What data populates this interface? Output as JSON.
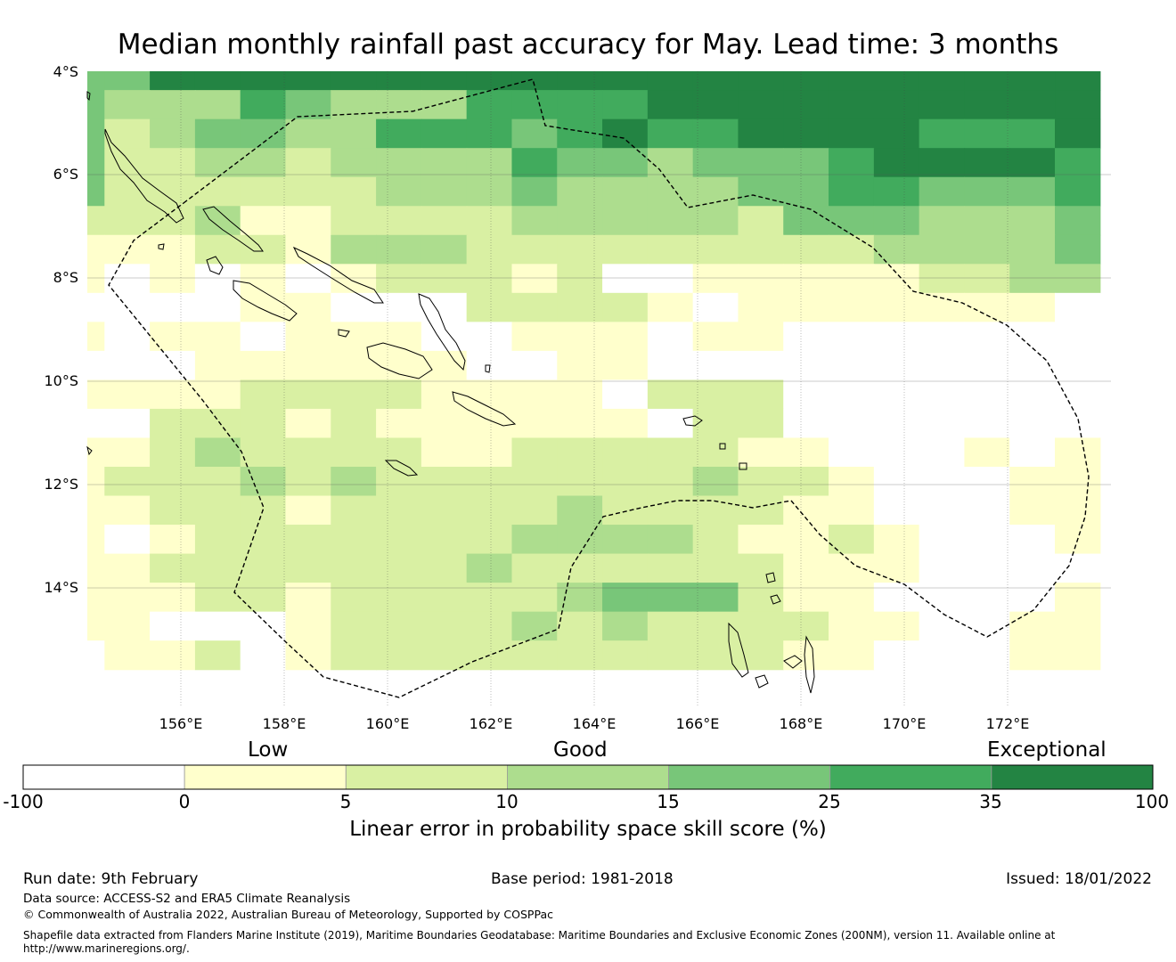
{
  "title": "Median monthly rainfall past accuracy for May. Lead time: 3 months",
  "map": {
    "lat_labels": [
      "4°S",
      "6°S",
      "8°S",
      "10°S",
      "12°S",
      "14°S"
    ],
    "lon_labels": [
      "156°E",
      "158°E",
      "160°E",
      "162°E",
      "164°E",
      "166°E",
      "168°E",
      "170°E",
      "172°E"
    ],
    "extent": {
      "lon_min": 154.2,
      "lon_max": 174.0,
      "lat_top": -4.0,
      "lat_bottom": -16.3
    },
    "class_colors": [
      "#ffffff",
      "#ffffcc",
      "#d9f0a3",
      "#addd8e",
      "#78c679",
      "#41ab5d",
      "#238443"
    ],
    "grid_rows": [
      "44666666666666666666666",
      "43335433355556666666666",
      "42344335554565566665556",
      "42233233335443444566665",
      "42222223334333344554445",
      "22231122223333324443334",
      "11122133322222222233334",
      "10101012221200111112233",
      "00001100022221011111110",
      "10110111001110110000000",
      "00011111100110000000000",
      "11112222111102220000000",
      "00222121111110220000000",
      "11232222112222211000101",
      "12223232222222322100011",
      "11222122222322221100011",
      "10122222223333211210001",
      "11222222232222221110000",
      "11122122222344421100001",
      "11000122223232222110011",
      "01120122222222221100011"
    ]
  },
  "legend": {
    "categories": [
      "Low",
      "Good",
      "Exceptional"
    ],
    "ticks": [
      "-100",
      "0",
      "5",
      "10",
      "15",
      "25",
      "35",
      "100"
    ],
    "title": "Linear error in probability space skill score (%)"
  },
  "footer": {
    "run_date": "Run date: 9th February",
    "base_period": "Base period: 1981-2018",
    "issued": "Issued: 18/01/2022",
    "data_source": "Data source: ACCESS-S2 and ERA5 Climate Reanalysis",
    "copyright": "© Commonwealth of Australia 2022, Australian Bureau of Meteorology, Supported by COSPPac",
    "shapefile_line1": "Shapefile data extracted from Flanders Marine Institute (2019), Maritime Boundaries Geodatabase: Maritime Boundaries and Exclusive Economic Zones (200NM), version 11. Available online at",
    "shapefile_line2": "http://www.marineregions.org/."
  }
}
